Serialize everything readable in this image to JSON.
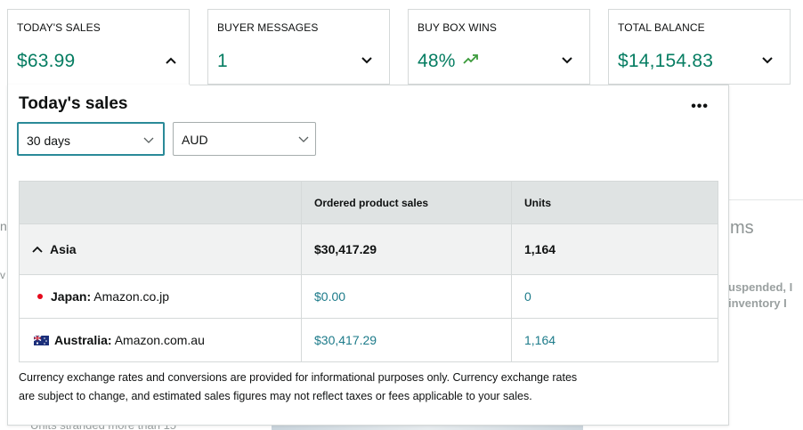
{
  "cards": [
    {
      "label": "TODAY'S SALES",
      "value": "$63.99",
      "chevron": "chevron-up-icon"
    },
    {
      "label": "BUYER MESSAGES",
      "value": "1",
      "chevron": "chevron-down-icon"
    },
    {
      "label": "BUY BOX WINS",
      "value": "48%",
      "trend": "trend-up-icon",
      "chevron": "chevron-down-icon"
    },
    {
      "label": "TOTAL BALANCE",
      "value": "$14,154.83",
      "chevron": "chevron-down-icon"
    }
  ],
  "popover": {
    "title": "Today's sales",
    "more": "•••",
    "period_select": "30 days",
    "currency_select": "AUD",
    "table": {
      "headers": [
        "",
        "Ordered product sales",
        "Units"
      ],
      "region": {
        "name": "Asia",
        "sales": "$30,417.29",
        "units": "1,164"
      },
      "rows": [
        {
          "country": "Japan:",
          "marketplace": "Amazon.co.jp",
          "sales": "$0.00",
          "units": "0"
        },
        {
          "country": "Australia:",
          "marketplace": "Amazon.com.au",
          "sales": "$30,417.29",
          "units": "1,164"
        }
      ]
    },
    "disclaimer_line1": "Currency exchange rates and conversions are provided for informational purposes only. Currency exchange rates",
    "disclaimer_line2": "are subject to change, and estimated sales figures may not reflect taxes or fees applicable to your sales."
  },
  "background": {
    "right_heading": "ms",
    "right_line1": "uspended, I",
    "right_line2": "inventory I",
    "bottom_text": "Units stranded more than 15"
  },
  "colors": {
    "accent_green": "#067d62",
    "link_teal": "#1d7b8a",
    "focus_border": "#2a8a98"
  }
}
